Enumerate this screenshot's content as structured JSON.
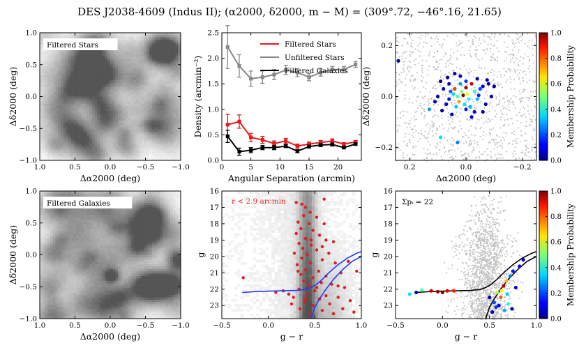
{
  "figure": {
    "title": "DES J2038-4609 (Indus II); (α2000, δ2000, m − M) = (309°.72, −46°.16, 21.65)"
  },
  "chart_data": [
    {
      "id": "p1",
      "type": "heatmap",
      "panel_label": "Filtered Stars",
      "xlabel": "Δα2000 (deg)",
      "ylabel": "Δδ2000 (deg)",
      "xlim": [
        1.0,
        -1.0
      ],
      "ylim": [
        -1.0,
        1.0
      ],
      "xticks": [
        "1.0",
        "0.5",
        "0.0",
        "−0.5",
        "−1.0"
      ],
      "yticks": [
        "1.0",
        "0.5",
        "0.0",
        "−0.5",
        "−1.0"
      ],
      "colormap": "grayscale smoothed density"
    },
    {
      "id": "p2",
      "type": "line",
      "xlabel": "Angular Separation (arcmin)",
      "ylabel": "Density (arcmin⁻²)",
      "xlim": [
        0,
        24
      ],
      "ylim": [
        0,
        2.5
      ],
      "xticks": [
        "0",
        "5",
        "10",
        "15",
        "20"
      ],
      "yticks": [
        "0.0",
        "0.5",
        "1.0",
        "1.5",
        "2.0",
        "2.5"
      ],
      "legend_position": "top-right",
      "x": [
        1,
        3,
        5,
        7,
        9,
        11,
        13,
        15,
        17,
        19,
        21,
        23
      ],
      "series": [
        {
          "name": "Filtered Stars",
          "color": "#e41a1c",
          "values": [
            0.7,
            0.76,
            0.45,
            0.4,
            0.33,
            0.38,
            0.28,
            0.32,
            0.35,
            0.38,
            0.32,
            0.36
          ],
          "errors": [
            0.2,
            0.13,
            0.08,
            0.07,
            0.05,
            0.05,
            0.04,
            0.04,
            0.04,
            0.04,
            0.03,
            0.03
          ]
        },
        {
          "name": "Unfiltered Stars",
          "color": "#888888",
          "values": [
            2.22,
            1.85,
            1.6,
            1.63,
            1.68,
            1.77,
            1.72,
            1.63,
            1.72,
            1.78,
            1.78,
            1.88
          ],
          "errors": [
            0.42,
            0.22,
            0.15,
            0.12,
            0.1,
            0.09,
            0.08,
            0.07,
            0.07,
            0.06,
            0.06,
            0.06
          ]
        },
        {
          "name": "Filtered Galaxies",
          "color": "#000000",
          "values": [
            0.47,
            0.17,
            0.2,
            0.25,
            0.25,
            0.28,
            0.18,
            0.27,
            0.3,
            0.31,
            0.25,
            0.32
          ],
          "errors": [
            0.12,
            0.07,
            0.05,
            0.04,
            0.04,
            0.03,
            0.03,
            0.03,
            0.03,
            0.03,
            0.02,
            0.02
          ]
        }
      ]
    },
    {
      "id": "p3",
      "type": "scatter",
      "xlabel": "Δα2000 (deg)",
      "ylabel": "Δδ2000 (deg)",
      "xlim": [
        0.25,
        -0.25
      ],
      "ylim": [
        -0.25,
        0.25
      ],
      "xticks": [
        "0.2",
        "0.0",
        "−0.2"
      ],
      "yticks": [
        "0.2",
        "0.0",
        "−0.2"
      ],
      "colorbar_label": "Membership Probability",
      "colorbar_ticks": [
        "0.0",
        "0.2",
        "0.4",
        "0.6",
        "0.8",
        "1.0"
      ],
      "members": [
        {
          "x": 0.01,
          "y": 0.005,
          "p": 1.0
        },
        {
          "x": 0.0,
          "y": 0.035,
          "p": 0.97
        },
        {
          "x": 0.04,
          "y": 0.03,
          "p": 0.82
        },
        {
          "x": -0.02,
          "y": 0.05,
          "p": 0.92
        },
        {
          "x": 0.025,
          "y": -0.02,
          "p": 0.72
        },
        {
          "x": -0.005,
          "y": 0.01,
          "p": 0.6
        },
        {
          "x": 0.015,
          "y": 0.02,
          "p": 0.5
        },
        {
          "x": 0.03,
          "y": 0.0,
          "p": 0.45
        },
        {
          "x": -0.03,
          "y": 0.02,
          "p": 0.4
        },
        {
          "x": -0.01,
          "y": -0.01,
          "p": 0.38
        },
        {
          "x": 0.005,
          "y": -0.03,
          "p": 0.35
        },
        {
          "x": 0.045,
          "y": 0.01,
          "p": 0.33
        },
        {
          "x": -0.04,
          "y": -0.01,
          "p": 0.3
        },
        {
          "x": 0.02,
          "y": 0.05,
          "p": 0.28
        },
        {
          "x": -0.015,
          "y": -0.04,
          "p": 0.3
        },
        {
          "x": 0.035,
          "y": -0.04,
          "p": 0.32
        },
        {
          "x": 0.055,
          "y": 0.02,
          "p": 0.22
        },
        {
          "x": -0.05,
          "y": 0.03,
          "p": 0.2
        },
        {
          "x": 0.0,
          "y": 0.06,
          "p": 0.18
        },
        {
          "x": 0.13,
          "y": -0.05,
          "p": 0.28
        },
        {
          "x": 0.09,
          "y": -0.16,
          "p": 0.35
        },
        {
          "x": 0.03,
          "y": -0.18,
          "p": 0.25
        },
        {
          "x": -0.06,
          "y": 0.04,
          "p": 0.12
        },
        {
          "x": 0.06,
          "y": 0.05,
          "p": 0.05
        },
        {
          "x": 0.08,
          "y": 0.03,
          "p": 0.08
        },
        {
          "x": -0.07,
          "y": -0.03,
          "p": 0.07
        },
        {
          "x": 0.07,
          "y": -0.03,
          "p": 0.1
        },
        {
          "x": -0.08,
          "y": 0.05,
          "p": 0.03
        },
        {
          "x": 0.1,
          "y": 0.0,
          "p": 0.04
        },
        {
          "x": -0.09,
          "y": 0.0,
          "p": 0.06
        },
        {
          "x": 0.05,
          "y": -0.07,
          "p": 0.05
        },
        {
          "x": -0.03,
          "y": -0.06,
          "p": 0.08
        },
        {
          "x": 0.02,
          "y": 0.08,
          "p": 0.04
        },
        {
          "x": -0.04,
          "y": 0.07,
          "p": 0.03
        },
        {
          "x": 0.09,
          "y": 0.06,
          "p": 0.02
        },
        {
          "x": -0.06,
          "y": -0.06,
          "p": 0.04
        },
        {
          "x": 0.11,
          "y": -0.02,
          "p": 0.06
        },
        {
          "x": -0.1,
          "y": 0.04,
          "p": 0.02
        },
        {
          "x": 0.04,
          "y": 0.09,
          "p": 0.05
        },
        {
          "x": -0.02,
          "y": -0.08,
          "p": 0.07
        },
        {
          "x": 0.24,
          "y": 0.14,
          "p": 0.02
        },
        {
          "x": 0.065,
          "y": 0.075,
          "p": 0.03
        },
        {
          "x": -0.075,
          "y": 0.065,
          "p": 0.04
        },
        {
          "x": 0.085,
          "y": -0.055,
          "p": 0.03
        },
        {
          "x": 0.0,
          "y": -0.05,
          "p": 0.15
        },
        {
          "x": 0.06,
          "y": -0.01,
          "p": 0.14
        },
        {
          "x": -0.045,
          "y": 0.005,
          "p": 0.16
        }
      ]
    },
    {
      "id": "p4",
      "type": "heatmap",
      "panel_label": "Filtered Galaxies",
      "xlabel": "Δα2000 (deg)",
      "ylabel": "Δδ2000 (deg)",
      "xlim": [
        1.0,
        -1.0
      ],
      "ylim": [
        -1.0,
        1.0
      ],
      "xticks": [
        "1.0",
        "0.5",
        "0.0",
        "−0.5",
        "−1.0"
      ],
      "yticks": [
        "1.0",
        "0.5",
        "0.0",
        "−0.5",
        "−1.0"
      ],
      "colormap": "grayscale smoothed density"
    },
    {
      "id": "p5",
      "type": "scatter",
      "annotation": "r < 2.9 arcmin",
      "xlabel": "g − r",
      "ylabel": "g",
      "xlim": [
        -0.5,
        1.0
      ],
      "ylim": [
        23.8,
        16.0
      ],
      "xticks": [
        "−0.5",
        "0.0",
        "0.5",
        "1.0"
      ],
      "yticks": [
        "16",
        "17",
        "18",
        "19",
        "20",
        "21",
        "22",
        "23"
      ],
      "points": [
        [
          0.36,
          16.8
        ],
        [
          0.4,
          17.0
        ],
        [
          0.45,
          17.3
        ],
        [
          0.38,
          17.5
        ],
        [
          0.52,
          17.6
        ],
        [
          0.32,
          17.9
        ],
        [
          0.44,
          18.0
        ],
        [
          0.6,
          18.0
        ],
        [
          0.35,
          18.3
        ],
        [
          0.48,
          18.4
        ],
        [
          0.3,
          18.6
        ],
        [
          0.55,
          18.7
        ],
        [
          0.4,
          18.9
        ],
        [
          0.62,
          19.0
        ],
        [
          0.33,
          19.2
        ],
        [
          0.46,
          19.3
        ],
        [
          0.7,
          19.1
        ],
        [
          0.37,
          19.5
        ],
        [
          0.52,
          19.6
        ],
        [
          0.28,
          19.8
        ],
        [
          0.42,
          19.9
        ],
        [
          0.65,
          19.8
        ],
        [
          0.36,
          20.1
        ],
        [
          0.58,
          20.2
        ],
        [
          0.45,
          20.4
        ],
        [
          0.31,
          20.5
        ],
        [
          0.72,
          20.4
        ],
        [
          0.4,
          20.8
        ],
        [
          0.54,
          20.9
        ],
        [
          0.35,
          21.1
        ],
        [
          0.62,
          21.2
        ],
        [
          0.48,
          21.3
        ],
        [
          0.78,
          21.0
        ],
        [
          0.38,
          21.5
        ],
        [
          0.57,
          21.6
        ],
        [
          0.44,
          21.8
        ],
        [
          0.68,
          21.7
        ],
        [
          0.33,
          22.0
        ],
        [
          0.5,
          22.1
        ],
        [
          0.82,
          21.9
        ],
        [
          0.41,
          22.3
        ],
        [
          0.62,
          22.4
        ],
        [
          0.27,
          22.5
        ],
        [
          0.55,
          22.6
        ],
        [
          0.75,
          22.5
        ],
        [
          0.39,
          22.8
        ],
        [
          0.66,
          22.9
        ],
        [
          0.48,
          23.0
        ],
        [
          0.88,
          22.7
        ],
        [
          0.34,
          23.2
        ],
        [
          0.58,
          23.3
        ],
        [
          0.8,
          23.2
        ],
        [
          0.44,
          23.5
        ],
        [
          0.7,
          23.5
        ],
        [
          0.92,
          23.4
        ],
        [
          0.22,
          22.3
        ],
        [
          -0.27,
          21.3
        ],
        [
          0.08,
          22.2
        ],
        [
          0.6,
          16.5
        ],
        [
          0.3,
          16.7
        ],
        [
          0.95,
          20.9
        ],
        [
          0.86,
          20.3
        ],
        [
          0.16,
          22.1
        ],
        [
          0.25,
          22.9
        ],
        [
          0.52,
          21.9
        ],
        [
          0.46,
          19.0
        ],
        [
          0.32,
          20.9
        ],
        [
          0.75,
          21.8
        ],
        [
          0.4,
          22.6
        ],
        [
          0.58,
          19.4
        ]
      ],
      "isochrone_hb": [
        [
          -0.28,
          22.2
        ],
        [
          -0.15,
          22.15
        ],
        [
          0.0,
          22.12
        ],
        [
          0.15,
          22.1
        ],
        [
          0.3,
          22.08
        ],
        [
          0.4,
          22.02
        ],
        [
          0.46,
          21.9
        ],
        [
          0.52,
          21.7
        ],
        [
          0.58,
          21.4
        ],
        [
          0.65,
          21.0
        ],
        [
          0.75,
          20.5
        ],
        [
          0.85,
          20.1
        ],
        [
          0.95,
          19.8
        ],
        [
          1.0,
          19.7
        ]
      ],
      "isochrone_ms": [
        [
          0.46,
          23.8
        ],
        [
          0.5,
          23.1
        ],
        [
          0.55,
          22.6
        ],
        [
          0.62,
          22.0
        ],
        [
          0.7,
          21.4
        ],
        [
          0.8,
          20.8
        ],
        [
          0.9,
          20.3
        ],
        [
          1.0,
          20.0
        ]
      ]
    },
    {
      "id": "p6",
      "type": "scatter",
      "annotation": "Σpᵢ = 22",
      "xlabel": "g − r",
      "ylabel": "g",
      "xlim": [
        -0.5,
        1.0
      ],
      "ylim": [
        23.8,
        16.0
      ],
      "xticks": [
        "−0.5",
        "0.0",
        "0.5",
        "1.0"
      ],
      "yticks": [
        "16",
        "17",
        "18",
        "19",
        "20",
        "21",
        "22",
        "23"
      ],
      "colorbar_label": "Membership Probability",
      "colorbar_ticks": [
        "0.0",
        "0.2",
        "0.4",
        "0.6",
        "0.8",
        "1.0"
      ],
      "members": [
        {
          "x": -0.28,
          "y": 22.2,
          "p": 0.05
        },
        {
          "x": -0.22,
          "y": 22.05,
          "p": 0.45
        },
        {
          "x": -0.12,
          "y": 22.1,
          "p": 0.92
        },
        {
          "x": -0.05,
          "y": 22.15,
          "p": 0.97
        },
        {
          "x": 0.0,
          "y": 22.2,
          "p": 1.0
        },
        {
          "x": 0.05,
          "y": 22.1,
          "p": 0.9
        },
        {
          "x": 0.12,
          "y": 22.1,
          "p": 0.85
        },
        {
          "x": -0.35,
          "y": 22.3,
          "p": 0.35
        },
        {
          "x": 0.5,
          "y": 22.5,
          "p": 0.05
        },
        {
          "x": 0.55,
          "y": 22.8,
          "p": 0.2
        },
        {
          "x": 0.58,
          "y": 22.2,
          "p": 0.55
        },
        {
          "x": 0.62,
          "y": 22.5,
          "p": 0.78
        },
        {
          "x": 0.65,
          "y": 21.8,
          "p": 0.95
        },
        {
          "x": 0.68,
          "y": 21.5,
          "p": 0.7
        },
        {
          "x": 0.72,
          "y": 21.2,
          "p": 0.25
        },
        {
          "x": 0.75,
          "y": 20.9,
          "p": 0.15
        },
        {
          "x": 0.6,
          "y": 23.0,
          "p": 0.1
        },
        {
          "x": 0.66,
          "y": 23.3,
          "p": 0.3
        },
        {
          "x": 0.7,
          "y": 22.9,
          "p": 0.42
        },
        {
          "x": 0.78,
          "y": 21.9,
          "p": 0.08
        },
        {
          "x": 0.82,
          "y": 20.6,
          "p": 0.12
        },
        {
          "x": 0.53,
          "y": 23.4,
          "p": 0.06
        },
        {
          "x": 0.74,
          "y": 23.2,
          "p": 0.04
        },
        {
          "x": 0.86,
          "y": 20.2,
          "p": 0.07
        },
        {
          "x": 0.63,
          "y": 22.1,
          "p": 0.62
        },
        {
          "x": 0.57,
          "y": 23.1,
          "p": 0.18
        },
        {
          "x": 0.69,
          "y": 22.3,
          "p": 0.33
        }
      ],
      "isochrone_hb": [
        [
          -0.28,
          22.2
        ],
        [
          -0.15,
          22.15
        ],
        [
          0.0,
          22.12
        ],
        [
          0.15,
          22.1
        ],
        [
          0.3,
          22.08
        ],
        [
          0.4,
          22.02
        ],
        [
          0.46,
          21.9
        ],
        [
          0.52,
          21.7
        ],
        [
          0.58,
          21.4
        ],
        [
          0.65,
          21.0
        ],
        [
          0.75,
          20.5
        ],
        [
          0.85,
          20.1
        ],
        [
          0.95,
          19.8
        ],
        [
          1.0,
          19.7
        ]
      ],
      "isochrone_ms": [
        [
          0.46,
          23.8
        ],
        [
          0.5,
          23.1
        ],
        [
          0.55,
          22.6
        ],
        [
          0.62,
          22.0
        ],
        [
          0.7,
          21.4
        ],
        [
          0.8,
          20.8
        ],
        [
          0.9,
          20.3
        ],
        [
          1.0,
          20.0
        ]
      ]
    }
  ],
  "colors": {
    "filtered_stars": "#e41a1c",
    "unfiltered_stars": "#888888",
    "filtered_galaxies": "#000000",
    "cmd_points": "#e41a1c",
    "isochrone_blue": "#1f3cff",
    "background_stars": "#c0c0c0"
  }
}
